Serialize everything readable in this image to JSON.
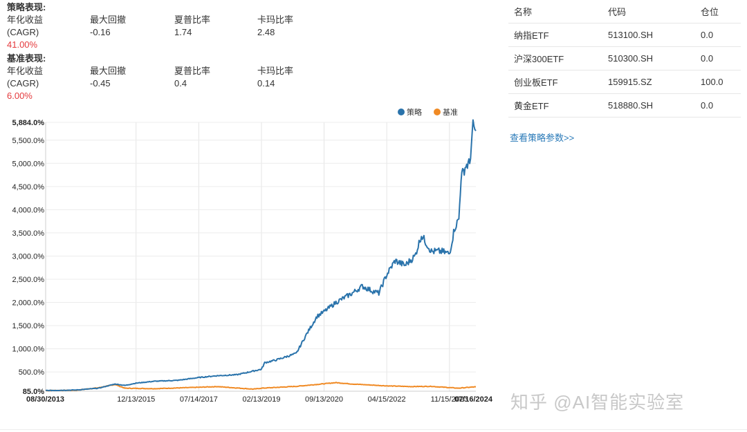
{
  "strategy_perf": {
    "title": "策略表现:",
    "headers": [
      "年化收益",
      "最大回撤",
      "夏普比率",
      "卡玛比率"
    ],
    "cagr_label": "(CAGR)",
    "max_drawdown": "-0.16",
    "sharpe": "1.74",
    "calmar": "2.48",
    "cagr_value": "41.00%"
  },
  "benchmark_perf": {
    "title": "基准表现:",
    "headers": [
      "年化收益",
      "最大回撤",
      "夏普比率",
      "卡玛比率"
    ],
    "cagr_label": "(CAGR)",
    "max_drawdown": "-0.45",
    "sharpe": "0.4",
    "calmar": "0.14",
    "cagr_value": "6.00%"
  },
  "holdings": {
    "headers": [
      "名称",
      "代码",
      "仓位"
    ],
    "rows": [
      {
        "name": "纳指ETF",
        "code": "513100.SH",
        "weight": "0.0"
      },
      {
        "name": "沪深300ETF",
        "code": "510300.SH",
        "weight": "0.0"
      },
      {
        "name": "创业板ETF",
        "code": "159915.SZ",
        "weight": "100.0"
      },
      {
        "name": "黄金ETF",
        "code": "518880.SH",
        "weight": "0.0"
      }
    ],
    "params_link": "查看策略参数>>"
  },
  "watermark": "知乎 @AI智能实验室",
  "colors": {
    "strategy": "#2a73ab",
    "benchmark": "#f08a24",
    "negative": "#e4393c",
    "link": "#2a7ab8"
  },
  "chart_data": {
    "type": "line",
    "legend_position": "top-right",
    "grid": true,
    "x_ticks": [
      "08/30/2013",
      "12/13/2015",
      "07/14/2017",
      "02/13/2019",
      "09/13/2020",
      "04/15/2022",
      "11/15/2023",
      "07/16/2024"
    ],
    "x_tick_bold": [
      "08/30/2013",
      "07/16/2024"
    ],
    "y_ticks": [
      "85.0%",
      "500.0%",
      "1,000.0%",
      "1,500.0%",
      "2,000.0%",
      "2,500.0%",
      "3,000.0%",
      "3,500.0%",
      "4,000.0%",
      "4,500.0%",
      "5,000.0%",
      "5,500.0%",
      "5,884.0%"
    ],
    "y_tick_values": [
      85,
      500,
      1000,
      1500,
      2000,
      2500,
      3000,
      3500,
      4000,
      4500,
      5000,
      5500,
      5884
    ],
    "y_tick_bold": [
      "85.0%",
      "5,884.0%"
    ],
    "ylim": [
      85,
      5884
    ],
    "xlim": [
      "2013-08-30",
      "2024-07-16"
    ],
    "series": [
      {
        "name": "策略",
        "color": "#2a73ab",
        "points": [
          [
            "2013-08-30",
            100
          ],
          [
            "2014-06-01",
            110
          ],
          [
            "2015-01-01",
            150
          ],
          [
            "2015-06-01",
            240
          ],
          [
            "2015-09-01",
            210
          ],
          [
            "2015-12-13",
            260
          ],
          [
            "2016-06-01",
            300
          ],
          [
            "2017-01-01",
            320
          ],
          [
            "2017-07-14",
            380
          ],
          [
            "2018-01-01",
            420
          ],
          [
            "2018-07-01",
            440
          ],
          [
            "2019-02-13",
            560
          ],
          [
            "2019-03-15",
            700
          ],
          [
            "2019-07-01",
            760
          ],
          [
            "2020-01-01",
            900
          ],
          [
            "2020-02-15",
            1100
          ],
          [
            "2020-04-01",
            1300
          ],
          [
            "2020-07-10",
            1700
          ],
          [
            "2020-09-13",
            1800
          ],
          [
            "2021-01-01",
            2000
          ],
          [
            "2021-06-01",
            2200
          ],
          [
            "2021-09-01",
            2350
          ],
          [
            "2021-12-01",
            2250
          ],
          [
            "2022-02-01",
            2200
          ],
          [
            "2022-04-15",
            2600
          ],
          [
            "2022-07-01",
            2900
          ],
          [
            "2022-10-01",
            2800
          ],
          [
            "2023-01-01",
            3000
          ],
          [
            "2023-03-01",
            3450
          ],
          [
            "2023-06-01",
            3100
          ],
          [
            "2023-09-01",
            3100
          ],
          [
            "2023-11-15",
            3050
          ],
          [
            "2024-01-01",
            3600
          ],
          [
            "2024-02-10",
            3800
          ],
          [
            "2024-03-01",
            4700
          ],
          [
            "2024-04-15",
            4950
          ],
          [
            "2024-05-20",
            5000
          ],
          [
            "2024-06-20",
            5800
          ],
          [
            "2024-07-16",
            5700
          ]
        ]
      },
      {
        "name": "基准",
        "color": "#f08a24",
        "points": [
          [
            "2013-08-30",
            100
          ],
          [
            "2014-06-01",
            105
          ],
          [
            "2015-01-01",
            160
          ],
          [
            "2015-06-01",
            230
          ],
          [
            "2015-09-01",
            150
          ],
          [
            "2016-06-01",
            140
          ],
          [
            "2017-07-14",
            170
          ],
          [
            "2018-01-01",
            185
          ],
          [
            "2018-12-01",
            130
          ],
          [
            "2019-02-13",
            150
          ],
          [
            "2020-01-01",
            190
          ],
          [
            "2021-01-01",
            270
          ],
          [
            "2021-06-01",
            240
          ],
          [
            "2022-04-15",
            200
          ],
          [
            "2022-12-01",
            185
          ],
          [
            "2023-06-01",
            190
          ],
          [
            "2024-02-01",
            150
          ],
          [
            "2024-07-16",
            180
          ]
        ]
      }
    ]
  }
}
